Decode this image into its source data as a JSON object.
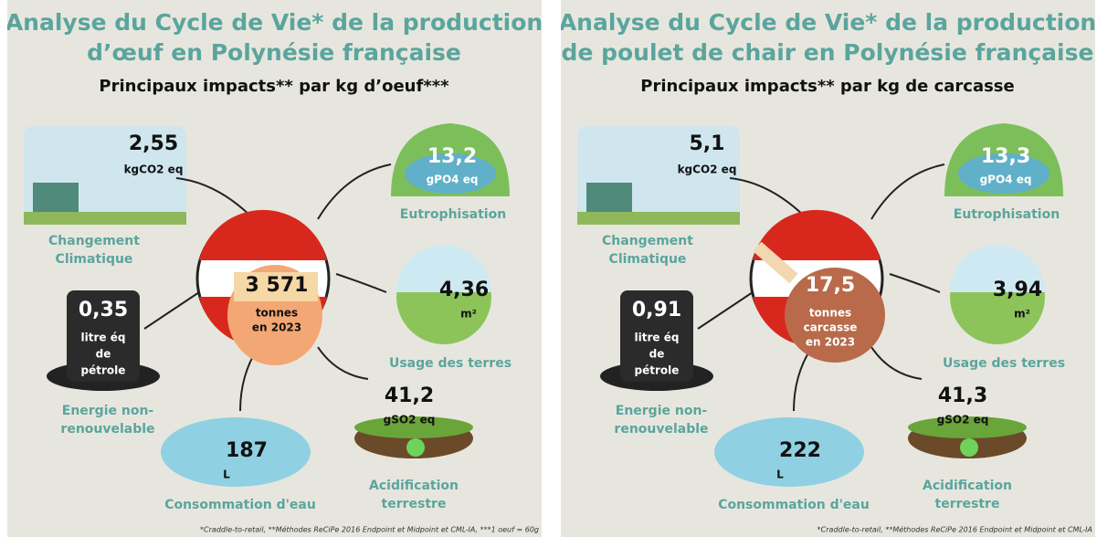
{
  "panels": [
    {
      "title_lines": [
        "Analyse du Cycle de Vie* de la production",
        "d’œuf en Polynésie française"
      ],
      "subtitle": "Principaux impacts** par kg d’oeuf***",
      "center": {
        "value": "3 571",
        "lines": [
          "tonnes",
          "en 2023"
        ]
      },
      "impacts": [
        {
          "value": "2,55",
          "unit": [
            "kgCO2 eq"
          ],
          "label": [
            "Changement",
            "Climatique"
          ]
        },
        {
          "value": "13,2",
          "unit": [
            "gPO4 eq"
          ],
          "label": [
            "Eutrophisation"
          ]
        },
        {
          "value": "4,36",
          "unit": [
            "m²"
          ],
          "label": [
            "Usage des terres"
          ]
        },
        {
          "value": "0,35",
          "unit": [
            "litre éq",
            "de",
            "pétrole"
          ],
          "label": [
            "Energie non-",
            "renouvelable"
          ]
        },
        {
          "value": "187",
          "unit": [
            "L"
          ],
          "label": [
            "Consommation d'eau"
          ]
        },
        {
          "value": "41,2",
          "unit": [
            "gSO2 eq"
          ],
          "label": [
            "Acidification",
            "terrestre"
          ]
        }
      ],
      "footnote": "*Craddle-to-retail, **Méthodes ReCiPe 2016 Endpoint et Midpoint et CML-IA, ***1 oeuf = 60g"
    },
    {
      "title_lines": [
        "Analyse du Cycle de Vie* de la production",
        "de poulet de chair en Polynésie française"
      ],
      "subtitle": "Principaux impacts** par kg de carcasse",
      "center": {
        "value": "17,5",
        "lines": [
          "tonnes",
          "carcasse",
          "en 2023"
        ]
      },
      "impacts": [
        {
          "value": "5,1",
          "unit": [
            "kgCO2 eq"
          ],
          "label": [
            "Changement",
            "Climatique"
          ]
        },
        {
          "value": "13,3",
          "unit": [
            "gPO4 eq"
          ],
          "label": [
            "Eutrophisation"
          ]
        },
        {
          "value": "3,94",
          "unit": [
            "m²"
          ],
          "label": [
            "Usage des terres"
          ]
        },
        {
          "value": "0,91",
          "unit": [
            "litre éq",
            "de",
            "pétrole"
          ],
          "label": [
            "Energie non-",
            "renouvelable"
          ]
        },
        {
          "value": "222",
          "unit": [
            "L"
          ],
          "label": [
            "Consommation d'eau"
          ]
        },
        {
          "value": "41,3",
          "unit": [
            "gSO2 eq"
          ],
          "label": [
            "Acidification",
            "terrestre"
          ]
        }
      ],
      "footnote": "*Craddle-to-retail, **Méthodes ReCiPe 2016 Endpoint et Midpoint et CML-IA"
    }
  ]
}
